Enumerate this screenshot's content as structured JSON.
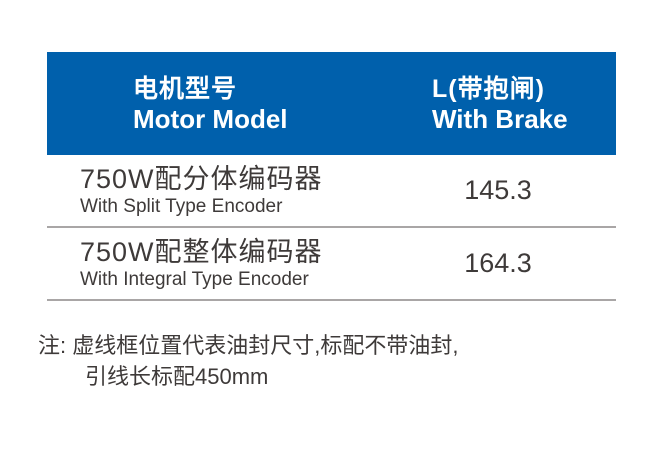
{
  "colors": {
    "header_bg": "#0060ac",
    "header_text": "#ffffff",
    "body_text": "#3e3a39",
    "divider": "#a9a6a6",
    "page_bg": "#ffffff"
  },
  "table": {
    "header": {
      "model_zh": "电机型号",
      "model_en": "Motor Model",
      "brake_zh": "L(带抱闸)",
      "brake_en": "With Brake"
    },
    "rows": [
      {
        "model_zh": "750W配分体编码器",
        "model_en": "With Split Type Encoder",
        "value": "145.3"
      },
      {
        "model_zh": "750W配整体编码器",
        "model_en": "With Integral Type Encoder",
        "value": "164.3"
      }
    ]
  },
  "note": {
    "line1": "注: 虚线框位置代表油封尺寸,标配不带油封,",
    "line2": "引线长标配450mm"
  }
}
